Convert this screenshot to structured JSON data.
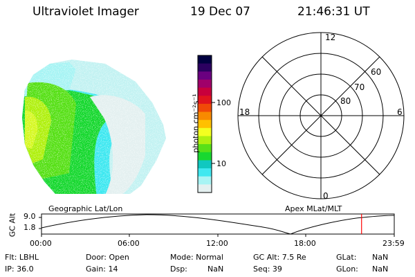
{
  "header": {
    "instrument": "Ultraviolet Imager",
    "date": "19 Dec 07",
    "time": "21:46:31 UT"
  },
  "colorbar": {
    "label": "photon cm⁻²s⁻¹",
    "ticks": [
      "100",
      "10"
    ],
    "colors": [
      "#000040",
      "#2b0060",
      "#6a0080",
      "#a0006a",
      "#c8003c",
      "#e0141e",
      "#f04a08",
      "#f88a00",
      "#ffc000",
      "#f4ff20",
      "#b0f010",
      "#58e018",
      "#18d830",
      "#10c8c0",
      "#40e8f0",
      "#a8f4f4",
      "#e4f0f0"
    ]
  },
  "polar_plot": {
    "mlt_labels": {
      "top": "12",
      "bottom": "0",
      "left": "18",
      "right": "6"
    },
    "lat_labels": [
      "60",
      "70",
      "80"
    ]
  },
  "timeline": {
    "left_label": "Geographic Lat/Lon",
    "right_label": "Apex MLat/MLT",
    "axis_title": "GC Alt",
    "y_ticks": [
      "9.0",
      "1.8"
    ],
    "x_ticks": [
      "00:00",
      "06:00",
      "12:00",
      "18:00",
      "23:59"
    ],
    "marker_time": "21:46:31",
    "marker_color": "#ff0000"
  },
  "info": {
    "flt": "Flt: LBHL",
    "ip": "IP: 36.0",
    "door": "Door: Open",
    "gain": "Gain: 14",
    "mode": "Mode: Normal",
    "dsp": "Dsp:",
    "dsp_val": "NaN",
    "gcalt": "GC Alt: 7.5 Re",
    "seq": "Seq: 39",
    "glat": "GLat:",
    "glat_val": "NaN",
    "glon": "GLon:",
    "glon_val": "NaN"
  }
}
